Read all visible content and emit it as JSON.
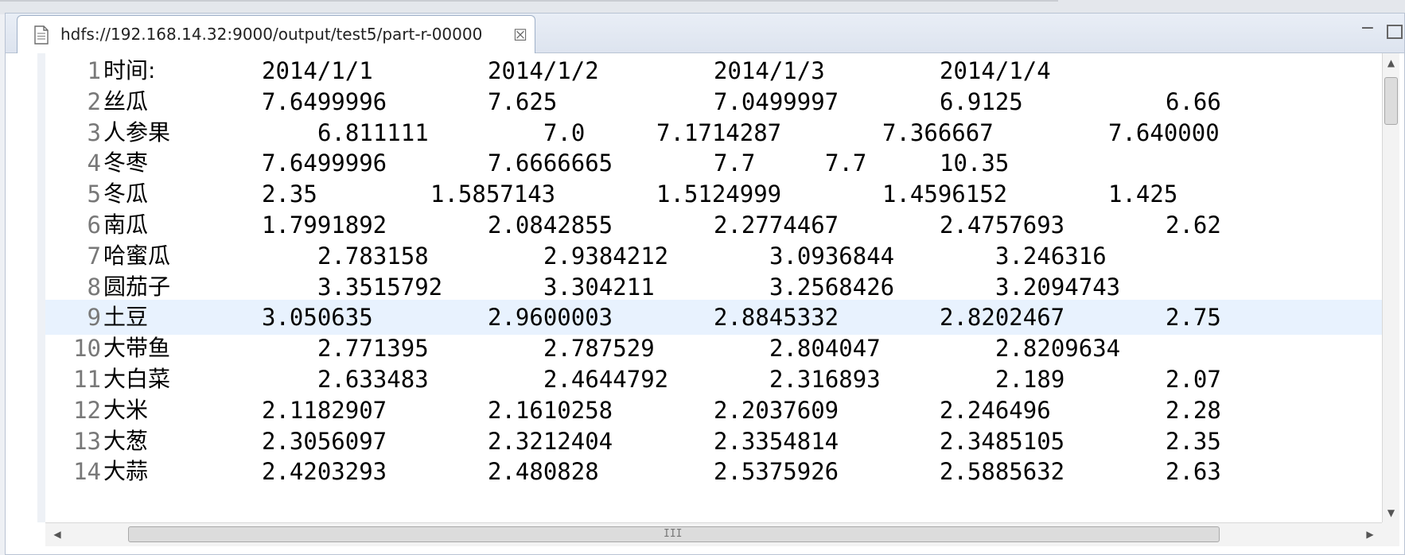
{
  "tab": {
    "title": "hdfs://192.168.14.32:9000/output/test5/part-r-00000",
    "close_glyph": "☒",
    "icon": "text-file-icon"
  },
  "window_controls": {
    "minimize_glyph": "−",
    "maximize_icon": "maximize-icon"
  },
  "scrollbars": {
    "up_glyph": "▲",
    "down_glyph": "▼",
    "left_glyph": "◀",
    "right_glyph": "▶",
    "grip": "III"
  },
  "lines": [
    {
      "n": "1",
      "name": "时间:",
      "cells": [
        "2014/1/1",
        "2014/1/2",
        "2014/1/3",
        "2014/1/4"
      ]
    },
    {
      "n": "2",
      "name": "丝瓜",
      "cells": [
        "7.6499996",
        "7.625",
        "7.0499997",
        "6.9125",
        "6.66"
      ]
    },
    {
      "n": "3",
      "name": "人参果",
      "cells": [
        "6.811111",
        "7.0",
        "7.1714287",
        "7.366667",
        "7.640000"
      ]
    },
    {
      "n": "4",
      "name": "冬枣",
      "cells": [
        "7.6499996",
        "7.6666665",
        "7.7",
        "7.7",
        "10.35"
      ]
    },
    {
      "n": "5",
      "name": "冬瓜",
      "cells": [
        "2.35",
        "1.5857143",
        "1.5124999",
        "1.4596152",
        "1.425"
      ]
    },
    {
      "n": "6",
      "name": "南瓜",
      "cells": [
        "1.7991892",
        "2.0842855",
        "2.2774467",
        "2.4757693",
        "2.62"
      ]
    },
    {
      "n": "7",
      "name": "哈蜜瓜",
      "cells": [
        "2.783158",
        "2.9384212",
        "3.0936844",
        "3.246316"
      ]
    },
    {
      "n": "8",
      "name": "圆茄子",
      "cells": [
        "3.3515792",
        "3.304211",
        "3.2568426",
        "3.2094743"
      ]
    },
    {
      "n": "9",
      "name": "土豆",
      "cells": [
        "3.050635",
        "2.9600003",
        "2.8845332",
        "2.8202467",
        "2.75"
      ]
    },
    {
      "n": "10",
      "name": "大带鱼",
      "cells": [
        "2.771395",
        "2.787529",
        "2.804047",
        "2.8209634"
      ]
    },
    {
      "n": "11",
      "name": "大白菜",
      "cells": [
        "2.633483",
        "2.4644792",
        "2.316893",
        "2.189",
        "2.07"
      ]
    },
    {
      "n": "12",
      "name": "大米",
      "cells": [
        "2.1182907",
        "2.1610258",
        "2.2037609",
        "2.246496",
        "2.28"
      ]
    },
    {
      "n": "13",
      "name": "大葱",
      "cells": [
        "2.3056097",
        "2.3212404",
        "2.3354814",
        "2.3485105",
        "2.35"
      ]
    },
    {
      "n": "14",
      "name": "大蒜",
      "cells": [
        "2.4203293",
        "2.480828",
        "2.5375926",
        "2.5885632",
        "2.63"
      ]
    }
  ],
  "current_line": "9"
}
